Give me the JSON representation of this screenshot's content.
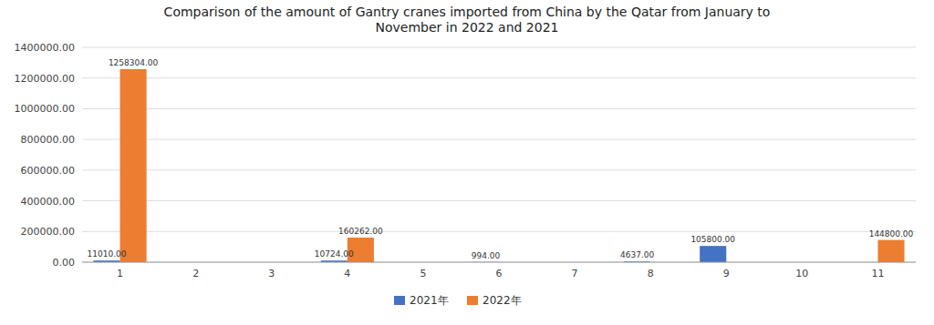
{
  "chart_data": {
    "type": "bar",
    "title": "Comparison of the amount of Gantry cranes imported from China by the Qatar from January to\nNovember in 2022 and 2021",
    "categories": [
      "1",
      "2",
      "3",
      "4",
      "5",
      "6",
      "7",
      "8",
      "9",
      "10",
      "11"
    ],
    "series": [
      {
        "name": "2021年",
        "color": "#4472c4",
        "values": [
          11010.0,
          0,
          0,
          10724.0,
          0,
          994.0,
          0,
          4637.0,
          105800.0,
          0,
          0
        ],
        "value_labels": [
          "11010.00",
          null,
          null,
          "10724.00",
          null,
          "994.00",
          null,
          "4637.00",
          "105800.00",
          null,
          null
        ]
      },
      {
        "name": "2022年",
        "color": "#ed7d31",
        "values": [
          1258304.0,
          0,
          0,
          160262.0,
          0,
          0,
          0,
          0,
          0,
          0,
          144800.0
        ],
        "value_labels": [
          "1258304.00",
          null,
          null,
          "160262.00",
          null,
          null,
          null,
          null,
          null,
          null,
          "144800.00"
        ]
      }
    ],
    "ylim": [
      0,
      1400000
    ],
    "yticks": [
      {
        "value": 0,
        "label": "0.00"
      },
      {
        "value": 200000,
        "label": "200000.00"
      },
      {
        "value": 400000,
        "label": "400000.00"
      },
      {
        "value": 600000,
        "label": "600000.00"
      },
      {
        "value": 800000,
        "label": "800000.00"
      },
      {
        "value": 1000000,
        "label": "1000000.00"
      },
      {
        "value": 1200000,
        "label": "1200000.00"
      },
      {
        "value": 1400000,
        "label": "1400000.00"
      }
    ],
    "grid": true,
    "legend": "bottom",
    "data_labels": true
  }
}
